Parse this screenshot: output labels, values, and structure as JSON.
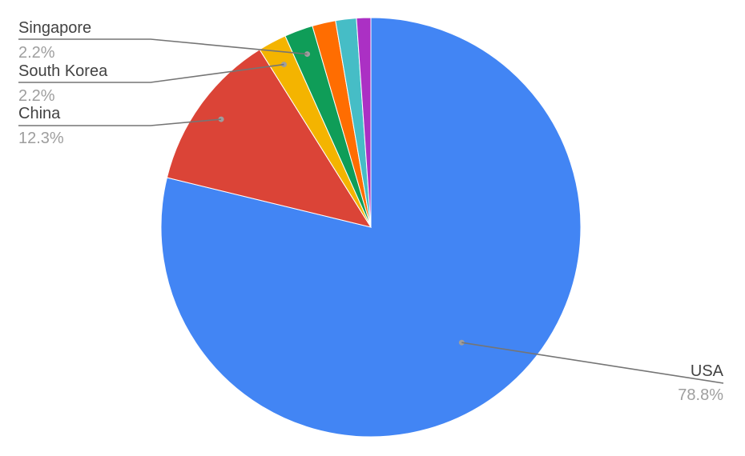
{
  "chart_data": {
    "type": "pie",
    "title": "",
    "start_angle_deg": 0,
    "direction": "clockwise",
    "slices": [
      {
        "label": "USA",
        "value": 78.8,
        "percent_label": "78.8%",
        "color": "#4285f4",
        "show_label": true
      },
      {
        "label": "China",
        "value": 12.3,
        "percent_label": "12.3%",
        "color": "#db4437",
        "show_label": true
      },
      {
        "label": "South Korea",
        "value": 2.2,
        "percent_label": "2.2%",
        "color": "#f4b400",
        "show_label": true
      },
      {
        "label": "Singapore",
        "value": 2.2,
        "percent_label": "2.2%",
        "color": "#0f9d58",
        "show_label": true
      },
      {
        "label": "",
        "value": 1.8,
        "percent_label": "",
        "color": "#ff6d01",
        "show_label": false
      },
      {
        "label": "",
        "value": 1.6,
        "percent_label": "",
        "color": "#46bdc6",
        "show_label": false
      },
      {
        "label": "",
        "value": 1.1,
        "percent_label": "",
        "color": "#ab30c4",
        "show_label": false
      }
    ]
  }
}
